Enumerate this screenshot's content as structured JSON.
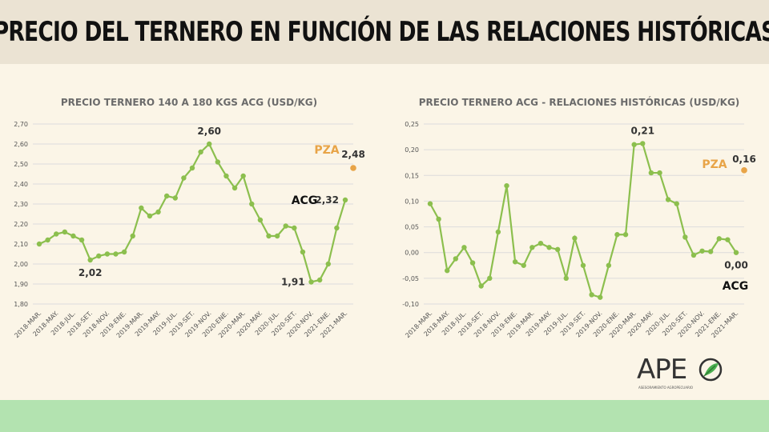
{
  "page_title": "PRECIO DEL TERNERO EN FUNCIÓN DE LAS RELACIONES HISTÓRICAS",
  "colors": {
    "line": "#8cbf4e",
    "pza": "#e8a447",
    "acg": "#111111",
    "grid": "#dcdcdc"
  },
  "logo": {
    "text": "APE",
    "subtitle": "ASESORAMIENTO AGROPECUARIO"
  },
  "chart_data": [
    {
      "type": "line",
      "title": "PRECIO TERNERO 140 A 180 KGS ACG (USD/KG)",
      "ylim": [
        1.8,
        2.7
      ],
      "yticks": [
        "2,70",
        "2,60",
        "2,50",
        "2,40",
        "2,30",
        "2,20",
        "2,10",
        "2,00",
        "1,90",
        "1,80"
      ],
      "x_tick_labels": [
        "2018-MAR.",
        "2018-MAY.",
        "2018-JUL.",
        "2018-SET.",
        "2018-NOV.",
        "2019-ENE.",
        "2019-MAR.",
        "2019-MAY.",
        "2019-JUL.",
        "2019-SET.",
        "2019-NOV.",
        "2020-ENE.",
        "2020-MAR.",
        "2020-MAY.",
        "2020-JUL.",
        "2020-SET.",
        "2020-NOV.",
        "2021-ENE.",
        "2021-MAR."
      ],
      "values": [
        2.1,
        2.12,
        2.15,
        2.16,
        2.14,
        2.12,
        2.02,
        2.04,
        2.05,
        2.05,
        2.06,
        2.14,
        2.28,
        2.24,
        2.26,
        2.34,
        2.33,
        2.43,
        2.48,
        2.56,
        2.6,
        2.51,
        2.44,
        2.38,
        2.44,
        2.3,
        2.22,
        2.14,
        2.14,
        2.19,
        2.18,
        2.06,
        1.91,
        1.92,
        2.0,
        2.18,
        2.32
      ],
      "annotations": [
        {
          "index": 6,
          "text": "2,02",
          "pos": "below"
        },
        {
          "index": 20,
          "text": "2,60",
          "pos": "above"
        },
        {
          "index": 32,
          "text": "1,91",
          "pos": "left"
        },
        {
          "index": 36,
          "text": "2,32",
          "pos": "left"
        }
      ],
      "acg_label": "ACG",
      "pza": {
        "label": "PZA",
        "value": 2.48,
        "value_text": "2,48"
      }
    },
    {
      "type": "line",
      "title": "PRECIO TERNERO ACG - RELACIONES HISTÓRICAS (USD/KG)",
      "ylim": [
        -0.1,
        0.25
      ],
      "yticks": [
        "0,25",
        "0,20",
        "0,15",
        "0,10",
        "0,05",
        "0,00",
        "-0,05",
        "-0,10"
      ],
      "x_tick_labels": [
        "2018-MAR.",
        "2018-MAY.",
        "2018-JUL.",
        "2018-SET.",
        "2018-NOV.",
        "2019-ENE.",
        "2019-MAR.",
        "2019-MAY.",
        "2019-JUL.",
        "2019-SET.",
        "2019-NOV.",
        "2020-ENE.",
        "2020-MAR.",
        "2020-MAY.",
        "2020-JUL.",
        "2020-SET.",
        "2020-NOV.",
        "2021-ENE.",
        "2021-MAR."
      ],
      "values": [
        0.095,
        0.065,
        -0.035,
        -0.012,
        0.01,
        -0.02,
        -0.065,
        -0.05,
        0.04,
        0.13,
        -0.018,
        -0.025,
        0.01,
        0.018,
        0.01,
        0.006,
        -0.05,
        0.028,
        -0.025,
        -0.082,
        -0.087,
        -0.025,
        0.035,
        0.035,
        0.21,
        0.212,
        0.155,
        0.155,
        0.103,
        0.095,
        0.03,
        -0.005,
        0.003,
        0.002,
        0.027,
        0.025,
        0.0
      ],
      "annotations": [
        {
          "index": 25,
          "text": "0,21",
          "pos": "above"
        },
        {
          "index": 36,
          "text": "0,00",
          "pos": "below"
        }
      ],
      "acg_label": "ACG",
      "pza": {
        "label": "PZA",
        "value": 0.16,
        "value_text": "0,16"
      }
    }
  ]
}
